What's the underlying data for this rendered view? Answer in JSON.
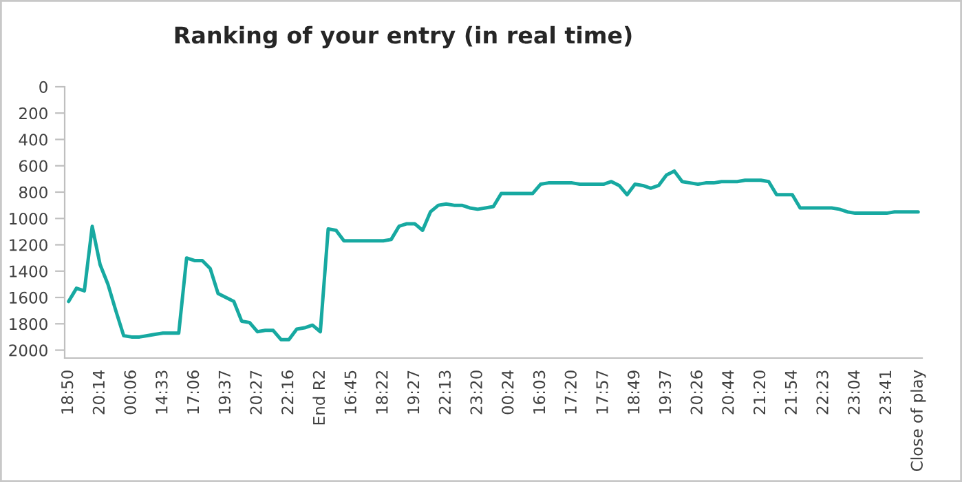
{
  "chart_data": {
    "type": "line",
    "title": "Ranking of your entry (in real time)",
    "categories": [
      "18:50",
      null,
      null,
      null,
      "20:14",
      null,
      null,
      null,
      "00:06",
      null,
      null,
      null,
      "14:33",
      null,
      null,
      null,
      "17:06",
      null,
      null,
      null,
      "19:37",
      null,
      null,
      null,
      "20:27",
      null,
      null,
      null,
      "22:16",
      null,
      null,
      null,
      "End R2",
      null,
      null,
      null,
      "16:45",
      null,
      null,
      null,
      "18:22",
      null,
      null,
      null,
      "19:27",
      null,
      null,
      null,
      "22:13",
      null,
      null,
      null,
      "23:20",
      null,
      null,
      null,
      "00:24",
      null,
      null,
      null,
      "16:03",
      null,
      null,
      null,
      "17:20",
      null,
      null,
      null,
      "17:57",
      null,
      null,
      null,
      "18:49",
      null,
      null,
      null,
      "19:37",
      null,
      null,
      null,
      "20:26",
      null,
      null,
      null,
      "20:44",
      null,
      null,
      null,
      "21:20",
      null,
      null,
      null,
      "21:54",
      null,
      null,
      null,
      "22:23",
      null,
      null,
      null,
      "23:04",
      null,
      null,
      null,
      "23:41",
      null,
      null,
      null,
      "Close of play"
    ],
    "series": [
      {
        "color": "#17a9a1",
        "values": [
          1630,
          1530,
          1550,
          1060,
          1350,
          1500,
          1700,
          1890,
          1900,
          1900,
          1890,
          1880,
          1870,
          1870,
          1870,
          1300,
          1320,
          1320,
          1380,
          1570,
          1600,
          1630,
          1780,
          1790,
          1860,
          1850,
          1850,
          1920,
          1920,
          1840,
          1830,
          1810,
          1860,
          1080,
          1090,
          1170,
          1170,
          1170,
          1170,
          1170,
          1170,
          1160,
          1060,
          1040,
          1040,
          1090,
          950,
          900,
          890,
          900,
          900,
          920,
          930,
          920,
          910,
          810,
          810,
          810,
          810,
          810,
          740,
          730,
          730,
          730,
          730,
          740,
          740,
          740,
          740,
          720,
          750,
          820,
          740,
          750,
          770,
          750,
          670,
          640,
          720,
          730,
          740,
          730,
          730,
          720,
          720,
          720,
          710,
          710,
          710,
          720,
          820,
          820,
          820,
          920,
          920,
          920,
          920,
          920,
          930,
          950,
          960,
          960,
          960,
          960,
          960,
          950,
          950,
          950,
          950
        ]
      }
    ],
    "ylim": [
      2060,
      0
    ],
    "yticks": [
      0,
      200,
      400,
      600,
      800,
      1000,
      1200,
      1400,
      1600,
      1800,
      2000
    ],
    "grid": false,
    "marker": "none",
    "line_style": "solid"
  }
}
